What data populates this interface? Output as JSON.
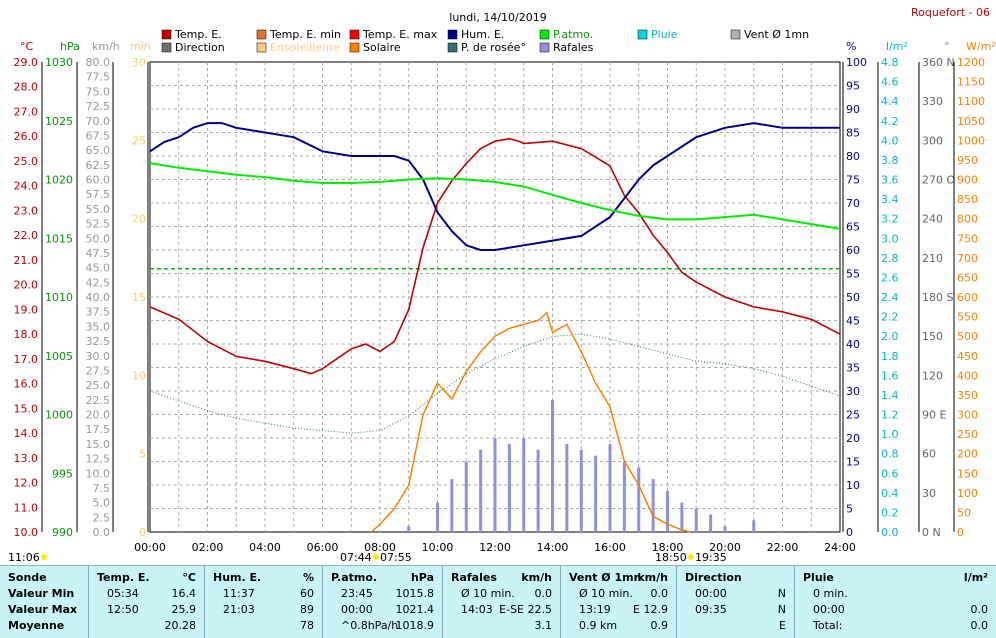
{
  "title": "lundi, 14/10/2019",
  "station": "Roquefort - 06",
  "legend": [
    {
      "label": "Temp. E.",
      "color": "#c00000"
    },
    {
      "label": "Temp. E. min",
      "color": "#e87030"
    },
    {
      "label": "Temp. E. max",
      "color": "#ff0000"
    },
    {
      "label": "Hum. E.",
      "color": "#000090"
    },
    {
      "label": "P.atmo.",
      "color": "#00ee00"
    },
    {
      "label": "Pluie",
      "color": "#00d8e8"
    },
    {
      "label": "Vent Ø 1mn",
      "color": "#b0b0b0"
    },
    {
      "label": "Direction",
      "color": "#707070"
    },
    {
      "label": "Ensoleilleme",
      "color": "#ffcc88"
    },
    {
      "label": "Solaire",
      "color": "#ff8000"
    },
    {
      "label": "P. de rosée°",
      "color": "#307070"
    },
    {
      "label": "Rafales",
      "color": "#9090e0"
    }
  ],
  "axis_units": {
    "temp": "°C",
    "press": "hPa",
    "wind": "km/h",
    "min": "min",
    "hum": "%",
    "rain": "l/m²",
    "dir": "°",
    "solar": "W/m²"
  },
  "axes": {
    "temp_ticks": [
      "29.0",
      "28.0",
      "27.0",
      "26.0",
      "25.0",
      "24.0",
      "23.0",
      "22.0",
      "21.0",
      "20.0",
      "19.0",
      "18.0",
      "17.0",
      "16.0",
      "15.0",
      "14.0",
      "13.0",
      "12.0",
      "11.0",
      "10.0"
    ],
    "press_ticks": [
      "1030",
      "1025",
      "1020",
      "1015",
      "1010",
      "1005",
      "1000",
      "995",
      "990"
    ],
    "wind_ticks": [
      "80.0",
      "77.5",
      "75.0",
      "72.5",
      "70.0",
      "67.5",
      "65.0",
      "62.5",
      "60.0",
      "57.5",
      "55.0",
      "52.5",
      "50.0",
      "47.5",
      "45.0",
      "42.5",
      "40.0",
      "37.5",
      "35.0",
      "32.5",
      "30.0",
      "27.5",
      "25.0",
      "22.5",
      "20.0",
      "17.5",
      "15.0",
      "12.5",
      "10.0",
      "7.5",
      "5.0",
      "2.5",
      "0.0"
    ],
    "min_ticks": [
      "30",
      "25",
      "20",
      "15",
      "10",
      "5",
      "0"
    ],
    "hum_ticks": [
      "100",
      "95",
      "90",
      "85",
      "80",
      "75",
      "70",
      "65",
      "60",
      "55",
      "50",
      "45",
      "40",
      "35",
      "30",
      "25",
      "20",
      "15",
      "10",
      "5",
      "0"
    ],
    "rain_ticks": [
      "4.8",
      "4.6",
      "4.4",
      "4.2",
      "4.0",
      "3.8",
      "3.6",
      "3.4",
      "3.2",
      "3.0",
      "2.8",
      "2.6",
      "2.4",
      "2.2",
      "2.0",
      "1.8",
      "1.6",
      "1.4",
      "1.2",
      "1.0",
      "0.8",
      "0.6",
      "0.4",
      "0.2",
      "0.0"
    ],
    "dir_ticks": [
      "360 N",
      "330",
      "300",
      "270 O",
      "240",
      "210",
      "180 S",
      "150",
      "120",
      "90 E",
      "60",
      "30",
      "0 N"
    ],
    "solar_ticks": [
      "1200",
      "1150",
      "1100",
      "1050",
      "1000",
      "950",
      "900",
      "850",
      "800",
      "750",
      "700",
      "650",
      "600",
      "550",
      "500",
      "450",
      "400",
      "350",
      "300",
      "250",
      "200",
      "150",
      "100",
      "50",
      "0"
    ],
    "time_ticks": [
      "00:00",
      "02:00",
      "04:00",
      "06:00",
      "08:00",
      "10:00",
      "12:00",
      "14:00",
      "16:00",
      "18:00",
      "20:00",
      "22:00",
      "24:00"
    ]
  },
  "markers": {
    "moon_left": "11:06",
    "sunrise_a": "07:44",
    "sunrise_b": "07:55",
    "sunset_a": "18:50",
    "sunset_b": "19:35"
  },
  "chart_data": {
    "type": "line",
    "x_unit": "hour",
    "x_range": [
      0,
      24
    ],
    "series": [
      {
        "name": "Temp. E.",
        "unit": "°C",
        "x": [
          0,
          1,
          2,
          3,
          4,
          5,
          5.6,
          6,
          7,
          7.5,
          8,
          8.5,
          9,
          9.5,
          10,
          10.5,
          11,
          11.5,
          12,
          12.5,
          12.83,
          13,
          14,
          15,
          16,
          16.5,
          17,
          17.5,
          18,
          18.5,
          19,
          19.5,
          20,
          21,
          22,
          23,
          24
        ],
        "y": [
          19.1,
          18.6,
          17.7,
          17.1,
          16.9,
          16.6,
          16.4,
          16.6,
          17.4,
          17.6,
          17.3,
          17.7,
          19.0,
          21.5,
          23.3,
          24.2,
          24.9,
          25.5,
          25.8,
          25.9,
          25.8,
          25.7,
          25.8,
          25.5,
          24.8,
          23.6,
          22.9,
          22.0,
          21.3,
          20.5,
          20.1,
          19.8,
          19.5,
          19.1,
          18.9,
          18.6,
          18.0
        ]
      },
      {
        "name": "Hum. E.",
        "unit": "%",
        "x": [
          0,
          0.5,
          1,
          1.5,
          2,
          2.5,
          3,
          4,
          5,
          6,
          7,
          7.5,
          8,
          8.5,
          9,
          9.5,
          10,
          10.5,
          11,
          11.5,
          12,
          13,
          14,
          15,
          16,
          16.5,
          17,
          17.5,
          18,
          19,
          20,
          21,
          22,
          23,
          24
        ],
        "y": [
          81,
          83,
          84,
          86,
          87,
          87,
          86,
          85,
          84,
          81,
          80,
          80,
          80,
          80,
          79,
          75,
          68,
          64,
          61,
          60,
          60,
          61,
          62,
          63,
          67,
          71,
          75,
          78,
          80,
          84,
          86,
          87,
          86,
          86,
          86
        ]
      },
      {
        "name": "P.atmo.",
        "unit": "hPa",
        "x": [
          0,
          1,
          2,
          3,
          4,
          5,
          6,
          7,
          8,
          9,
          10,
          11,
          12,
          13,
          14,
          15,
          16,
          17,
          18,
          19,
          20,
          21,
          22,
          23,
          24
        ],
        "y": [
          1021.4,
          1021.0,
          1020.7,
          1020.4,
          1020.2,
          1019.9,
          1019.7,
          1019.7,
          1019.8,
          1020.0,
          1020.1,
          1020.0,
          1019.8,
          1019.4,
          1018.7,
          1018.0,
          1017.4,
          1016.9,
          1016.6,
          1016.6,
          1016.8,
          1017.0,
          1016.6,
          1016.2,
          1015.8
        ]
      },
      {
        "name": "P. de rosée°",
        "unit": "°C",
        "x": [
          0,
          1,
          2,
          3,
          4,
          5,
          6,
          7,
          8,
          9,
          10,
          11,
          12,
          13,
          14,
          15,
          16,
          17,
          18,
          19,
          20,
          21,
          22,
          23,
          24
        ],
        "y": [
          15.7,
          15.3,
          14.9,
          14.6,
          14.4,
          14.2,
          14.1,
          14.0,
          14.1,
          14.7,
          15.6,
          16.4,
          17.0,
          17.5,
          17.9,
          18.0,
          17.8,
          17.5,
          17.2,
          16.9,
          16.8,
          16.6,
          16.3,
          15.9,
          15.5
        ]
      },
      {
        "name": "Solaire",
        "unit": "W/m²",
        "x": [
          7.7,
          8.0,
          8.5,
          9,
          9.5,
          10,
          10.5,
          11,
          11.5,
          12,
          12.5,
          13,
          13.5,
          13.8,
          14,
          14.5,
          15,
          15.5,
          16,
          16.5,
          17,
          17.5,
          18,
          18.5,
          18.8
        ],
        "y": [
          0,
          20,
          60,
          120,
          300,
          380,
          340,
          410,
          460,
          500,
          520,
          530,
          540,
          560,
          510,
          530,
          460,
          380,
          320,
          180,
          120,
          40,
          20,
          5,
          0
        ]
      },
      {
        "name": "Rafales",
        "unit": "km/h",
        "x": [
          8,
          9,
          10,
          10.5,
          11,
          11.5,
          12,
          12.5,
          13,
          13.5,
          14,
          14.5,
          15,
          15.5,
          16,
          16.5,
          17,
          17.5,
          18,
          18.5,
          19,
          19.5,
          20,
          21,
          22,
          23,
          24
        ],
        "y": [
          0,
          1,
          5,
          9,
          12,
          14,
          16,
          15,
          16,
          14,
          22.5,
          15,
          14,
          13,
          15,
          12,
          11,
          9,
          7,
          5,
          4,
          3,
          1,
          2,
          0,
          0,
          0
        ]
      }
    ]
  },
  "table": {
    "sections": [
      {
        "title": "Sonde",
        "rows": [
          "Valeur Min",
          "Valeur Max",
          "Moyenne"
        ]
      },
      {
        "title": "Temp. E.",
        "unit": "°C",
        "rows": [
          [
            "05:34",
            "16.4"
          ],
          [
            "12:50",
            "25.9"
          ],
          [
            "",
            "20.28"
          ]
        ]
      },
      {
        "title": "Hum. E.",
        "unit": "%",
        "rows": [
          [
            "11:37",
            "60"
          ],
          [
            "21:03",
            "89"
          ],
          [
            "",
            "78"
          ]
        ]
      },
      {
        "title": "P.atmo.",
        "unit": "hPa",
        "rows": [
          [
            "23:45",
            "1015.8"
          ],
          [
            "00:00",
            "1021.4"
          ],
          [
            "^0.8hPa/h",
            "1018.9"
          ]
        ]
      },
      {
        "title": "Rafales",
        "unit": "km/h",
        "rows": [
          [
            "Ø 10 min.",
            "0.0"
          ],
          [
            "14:03",
            "E-SE 22.5"
          ],
          [
            "",
            "3.1"
          ]
        ]
      },
      {
        "title": "Vent Ø 1mn",
        "unit": "km/h",
        "rows": [
          [
            "Ø 10 min.",
            "0.0"
          ],
          [
            "13:19",
            "E 12.9"
          ],
          [
            "0.9 km",
            "0.9"
          ]
        ]
      },
      {
        "title": "Direction",
        "unit": "",
        "rows": [
          [
            "00:00",
            "N"
          ],
          [
            "09:35",
            "N"
          ],
          [
            "",
            "E"
          ]
        ]
      },
      {
        "title": "Pluie",
        "unit": "l/m²",
        "rows": [
          [
            "0 min.",
            ""
          ],
          [
            "00:00",
            "0.0"
          ],
          [
            "Total:",
            "0.0"
          ]
        ]
      }
    ]
  }
}
